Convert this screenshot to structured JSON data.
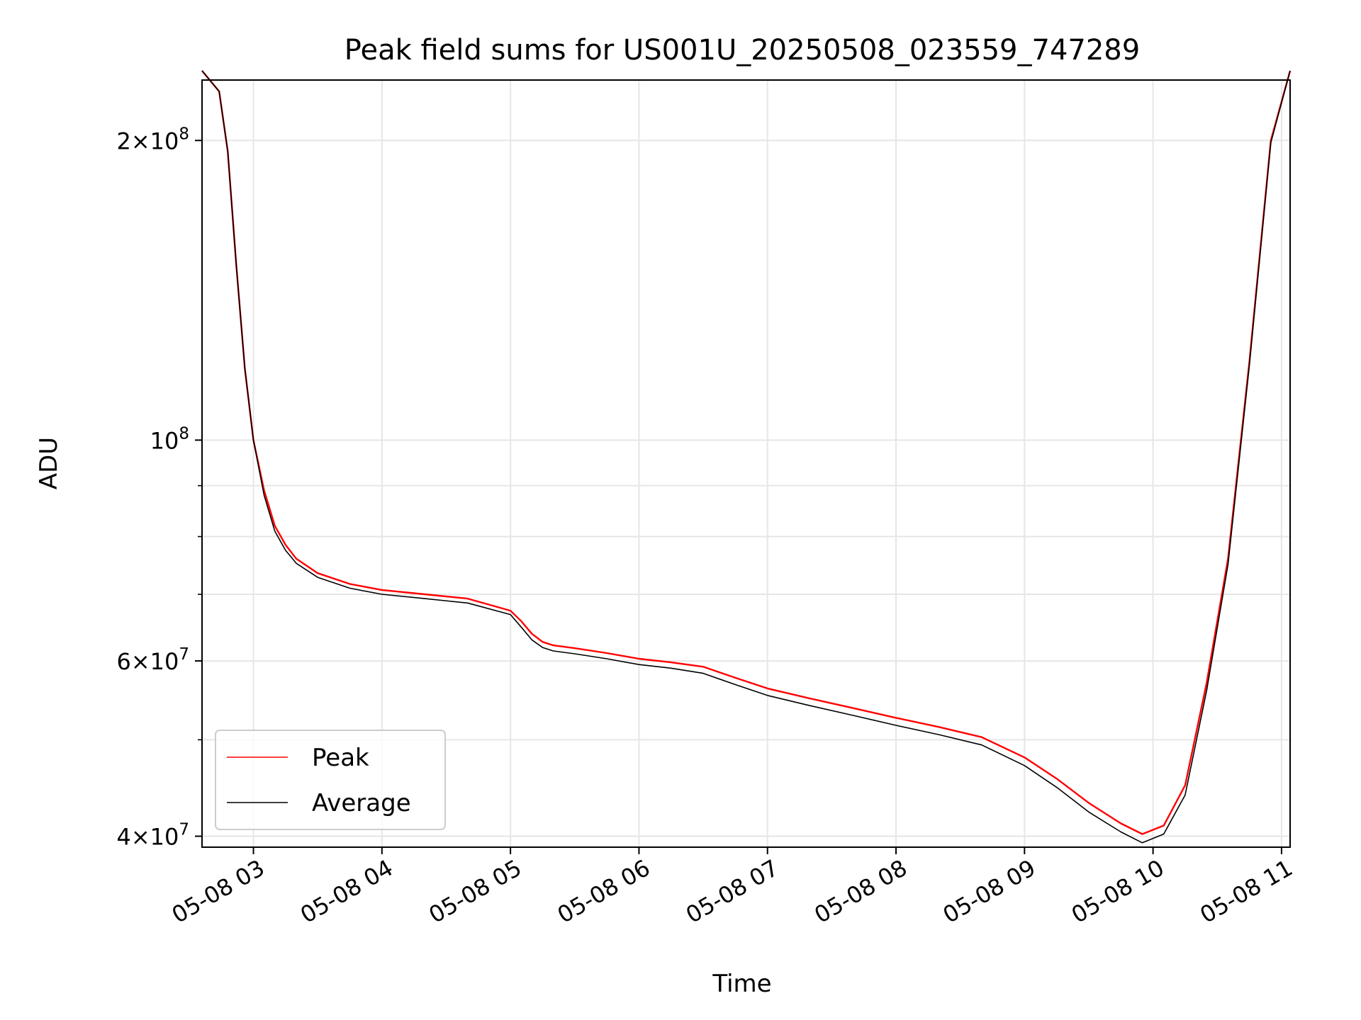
{
  "chart_data": {
    "type": "line",
    "title": "Peak field sums for US001U_20250508_023559_747289",
    "xlabel": "Time",
    "ylabel": "ADU",
    "y_scale": "log",
    "grid": true,
    "legend_position": "lower-left",
    "xlim": [
      "2025-05-08 02:36",
      "2025-05-08 11:04"
    ],
    "ylim": [
      39000000,
      230000000
    ],
    "x_ticks": [
      "2025-05-08 03:00",
      "2025-05-08 04:00",
      "2025-05-08 05:00",
      "2025-05-08 06:00",
      "2025-05-08 07:00",
      "2025-05-08 08:00",
      "2025-05-08 09:00",
      "2025-05-08 10:00",
      "2025-05-08 11:00"
    ],
    "x_tick_labels": [
      "05-08 03",
      "05-08 04",
      "05-08 05",
      "05-08 06",
      "05-08 07",
      "05-08 08",
      "05-08 09",
      "05-08 10",
      "05-08 11"
    ],
    "y_ticks": [
      {
        "value": 40000000,
        "mantissa": "4",
        "exponent": "7"
      },
      {
        "value": 60000000,
        "mantissa": "6",
        "exponent": "7"
      },
      {
        "value": 100000000,
        "mantissa": "",
        "exponent": "8"
      },
      {
        "value": 200000000,
        "mantissa": "2",
        "exponent": "8"
      }
    ],
    "y_minor_ticks": [
      50000000,
      70000000,
      80000000,
      90000000
    ],
    "series": [
      {
        "name": "Peak",
        "color": "#ff0000",
        "x": [
          "2025-05-08 02:36",
          "2025-05-08 02:44",
          "2025-05-08 02:48",
          "2025-05-08 02:52",
          "2025-05-08 02:56",
          "2025-05-08 03:00",
          "2025-05-08 03:05",
          "2025-05-08 03:10",
          "2025-05-08 03:15",
          "2025-05-08 03:20",
          "2025-05-08 03:30",
          "2025-05-08 03:45",
          "2025-05-08 04:00",
          "2025-05-08 04:20",
          "2025-05-08 04:40",
          "2025-05-08 05:00",
          "2025-05-08 05:05",
          "2025-05-08 05:10",
          "2025-05-08 05:15",
          "2025-05-08 05:20",
          "2025-05-08 05:30",
          "2025-05-08 05:45",
          "2025-05-08 06:00",
          "2025-05-08 06:15",
          "2025-05-08 06:30",
          "2025-05-08 06:45",
          "2025-05-08 07:00",
          "2025-05-08 07:20",
          "2025-05-08 07:40",
          "2025-05-08 08:00",
          "2025-05-08 08:20",
          "2025-05-08 08:40",
          "2025-05-08 09:00",
          "2025-05-08 09:15",
          "2025-05-08 09:30",
          "2025-05-08 09:45",
          "2025-05-08 09:55",
          "2025-05-08 10:05",
          "2025-05-08 10:15",
          "2025-05-08 10:25",
          "2025-05-08 10:35",
          "2025-05-08 10:45",
          "2025-05-08 10:55",
          "2025-05-08 11:04"
        ],
        "y": [
          235000000,
          224000000,
          195000000,
          150000000,
          118000000,
          100000000,
          89000000,
          82000000,
          78500000,
          76000000,
          73500000,
          71700000,
          70700000,
          70000000,
          69300000,
          67400000,
          65800000,
          63900000,
          62700000,
          62200000,
          61800000,
          61100000,
          60300000,
          59800000,
          59200000,
          57700000,
          56300000,
          55000000,
          53800000,
          52600000,
          51500000,
          50300000,
          48000000,
          45700000,
          43200000,
          41200000,
          40200000,
          41000000,
          45000000,
          57000000,
          76000000,
          120000000,
          200000000,
          235000000
        ]
      },
      {
        "name": "Average",
        "color": "#000000",
        "x": [
          "2025-05-08 02:36",
          "2025-05-08 02:44",
          "2025-05-08 02:48",
          "2025-05-08 02:52",
          "2025-05-08 02:56",
          "2025-05-08 03:00",
          "2025-05-08 03:05",
          "2025-05-08 03:10",
          "2025-05-08 03:15",
          "2025-05-08 03:20",
          "2025-05-08 03:30",
          "2025-05-08 03:45",
          "2025-05-08 04:00",
          "2025-05-08 04:20",
          "2025-05-08 04:40",
          "2025-05-08 05:00",
          "2025-05-08 05:05",
          "2025-05-08 05:10",
          "2025-05-08 05:15",
          "2025-05-08 05:20",
          "2025-05-08 05:30",
          "2025-05-08 05:45",
          "2025-05-08 06:00",
          "2025-05-08 06:15",
          "2025-05-08 06:30",
          "2025-05-08 06:45",
          "2025-05-08 07:00",
          "2025-05-08 07:20",
          "2025-05-08 07:40",
          "2025-05-08 08:00",
          "2025-05-08 08:20",
          "2025-05-08 08:40",
          "2025-05-08 09:00",
          "2025-05-08 09:15",
          "2025-05-08 09:30",
          "2025-05-08 09:45",
          "2025-05-08 09:55",
          "2025-05-08 10:05",
          "2025-05-08 10:15",
          "2025-05-08 10:25",
          "2025-05-08 10:35",
          "2025-05-08 10:45",
          "2025-05-08 10:55",
          "2025-05-08 11:04"
        ],
        "y": [
          235000000,
          224000000,
          195000000,
          150000000,
          118000000,
          100000000,
          88000000,
          81000000,
          77500000,
          75200000,
          72800000,
          71000000,
          70000000,
          69300000,
          68600000,
          66800000,
          64900000,
          63000000,
          61900000,
          61400000,
          61000000,
          60300000,
          59500000,
          59000000,
          58300000,
          56800000,
          55400000,
          54100000,
          52900000,
          51700000,
          50600000,
          49400000,
          47100000,
          44800000,
          42300000,
          40400000,
          39400000,
          40200000,
          44000000,
          56000000,
          75000000,
          119000000,
          199000000,
          235000000
        ]
      }
    ]
  }
}
